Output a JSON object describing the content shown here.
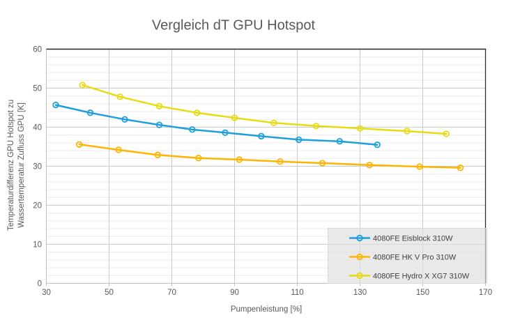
{
  "chart_data": {
    "type": "line",
    "title": "Vergleich dT GPU Hotspot",
    "xlabel": "Pumpenleistung [%]",
    "ylabel_line1": "Temperaturdifferenz GPU Hotspot zu",
    "ylabel_line2": "Wassertemperatur Zufluss GPU  [K]",
    "xlim": [
      30,
      170
    ],
    "ylim": [
      0,
      60
    ],
    "xticks": [
      30,
      50,
      70,
      90,
      110,
      130,
      150,
      170
    ],
    "yticks": [
      0,
      10,
      20,
      30,
      40,
      50,
      60
    ],
    "y_minor_step": 2,
    "grid": "horizontal major+minor, vertical major only",
    "legend_position": "inside bottom-right",
    "series": [
      {
        "name": "4080FE Eisblock 310W",
        "color": "#1E9FDB",
        "points": [
          [
            33,
            45.7
          ],
          [
            44,
            43.7
          ],
          [
            55,
            42.0
          ],
          [
            66,
            40.6
          ],
          [
            76.5,
            39.4
          ],
          [
            87,
            38.6
          ],
          [
            98.5,
            37.7
          ],
          [
            110.5,
            36.8
          ],
          [
            123.5,
            36.4
          ],
          [
            135.5,
            35.5
          ]
        ]
      },
      {
        "name": "4080FE HK V Pro 310W",
        "color": "#FFB400",
        "points": [
          [
            40.5,
            35.6
          ],
          [
            53,
            34.2
          ],
          [
            65.5,
            32.9
          ],
          [
            78.5,
            32.1
          ],
          [
            91.5,
            31.7
          ],
          [
            104.5,
            31.2
          ],
          [
            118,
            30.8
          ],
          [
            133,
            30.3
          ],
          [
            149,
            29.9
          ],
          [
            162,
            29.6
          ]
        ]
      },
      {
        "name": "4080FE Hydro X XG7 310W",
        "color": "#E7DB12",
        "points": [
          [
            41.5,
            50.8
          ],
          [
            53.5,
            47.8
          ],
          [
            66,
            45.4
          ],
          [
            78,
            43.7
          ],
          [
            90,
            42.4
          ],
          [
            102.5,
            41.1
          ],
          [
            116,
            40.3
          ],
          [
            130,
            39.7
          ],
          [
            145,
            39.0
          ],
          [
            157.5,
            38.3
          ]
        ]
      }
    ]
  },
  "styles": {
    "text_color": "#595959",
    "grid_major": "#C9C9C9",
    "grid_minor": "#ECECEC",
    "axis_line": "#BFBFBF",
    "plot_border": "#262626",
    "legend_fill": "rgba(222,222,222,0.65)",
    "legend_border": "#D9D9D9"
  }
}
